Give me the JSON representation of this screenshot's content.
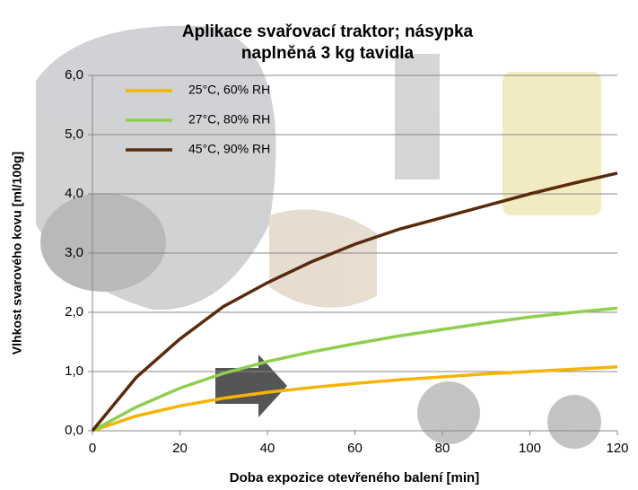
{
  "chart_data": {
    "type": "line",
    "title": [
      "Aplikace svařovací traktor;  násypka",
      "naplněná 3 kg tavidla"
    ],
    "x_label": "Doba expozice otevřeného balení [min]",
    "y_label": "Vlhkost svarového kovu  [ml/100g]",
    "x": [
      0,
      10,
      20,
      30,
      40,
      50,
      60,
      70,
      80,
      90,
      100,
      110,
      120
    ],
    "series": [
      {
        "name": "25°C,  60% RH",
        "color": "#f5b400",
        "values": [
          0,
          0.25,
          0.42,
          0.55,
          0.65,
          0.73,
          0.8,
          0.86,
          0.91,
          0.96,
          1.0,
          1.04,
          1.08
        ]
      },
      {
        "name": "27°C,  80% RH",
        "color": "#8fcf4f",
        "values": [
          0,
          0.4,
          0.72,
          0.97,
          1.17,
          1.33,
          1.47,
          1.6,
          1.71,
          1.82,
          1.92,
          2.0,
          2.07
        ]
      },
      {
        "name": "45°C,  90% RH",
        "color": "#5a2a0c",
        "values": [
          0,
          0.9,
          1.55,
          2.1,
          2.5,
          2.85,
          3.15,
          3.4,
          3.6,
          3.8,
          4.0,
          4.18,
          4.35
        ]
      }
    ],
    "xlim": [
      0,
      120
    ],
    "xticks": [
      0,
      20,
      40,
      60,
      80,
      100,
      120
    ],
    "ylim": [
      0,
      6
    ],
    "yticks": [
      {
        "value": 0,
        "label": "0,0"
      },
      {
        "value": 1,
        "label": "1,0"
      },
      {
        "value": 2,
        "label": "2,0"
      },
      {
        "value": 3,
        "label": "3,0"
      },
      {
        "value": 4,
        "label": "4,0"
      },
      {
        "value": 5,
        "label": "5,0"
      },
      {
        "value": 6,
        "label": "6,0"
      }
    ],
    "grid": true,
    "legend": "top-left"
  }
}
